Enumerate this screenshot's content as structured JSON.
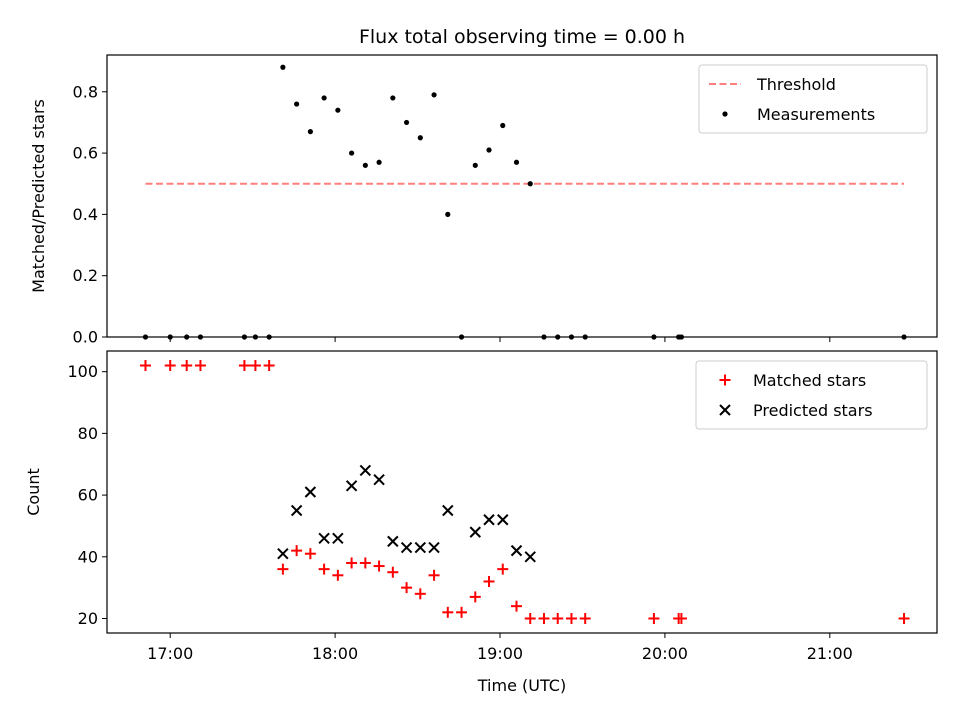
{
  "chart_data": [
    {
      "type": "scatter",
      "title": "Flux total observing time = 0.00 h",
      "xlabel": "",
      "ylabel": "Matched/Predicted stars",
      "ylim": [
        0,
        0.92
      ],
      "yticks": [
        "0.0",
        "0.2",
        "0.4",
        "0.6",
        "0.8"
      ],
      "ytick_values": [
        0,
        0.2,
        0.4,
        0.6,
        0.8
      ],
      "legend_position": "top-right",
      "legend": [
        "Threshold",
        "Measurements"
      ],
      "threshold": {
        "name": "Threshold",
        "value": 0.5,
        "x_start": "16:51",
        "x_end": "21:27",
        "color": "#ff7f7f"
      },
      "series": [
        {
          "name": "Measurements",
          "color": "#000000",
          "points": [
            [
              "16:51",
              0.0
            ],
            [
              "17:00",
              0.0
            ],
            [
              "17:06",
              0.0
            ],
            [
              "17:11",
              0.0
            ],
            [
              "17:27",
              0.0
            ],
            [
              "17:31",
              0.0
            ],
            [
              "17:36",
              0.0
            ],
            [
              "17:41",
              0.88
            ],
            [
              "17:46",
              0.76
            ],
            [
              "17:51",
              0.67
            ],
            [
              "17:56",
              0.78
            ],
            [
              "18:01",
              0.74
            ],
            [
              "18:06",
              0.6
            ],
            [
              "18:11",
              0.56
            ],
            [
              "18:16",
              0.57
            ],
            [
              "18:21",
              0.78
            ],
            [
              "18:26",
              0.7
            ],
            [
              "18:31",
              0.65
            ],
            [
              "18:36",
              0.79
            ],
            [
              "18:41",
              0.4
            ],
            [
              "18:46",
              0.0
            ],
            [
              "18:51",
              0.56
            ],
            [
              "18:56",
              0.61
            ],
            [
              "19:01",
              0.69
            ],
            [
              "19:06",
              0.57
            ],
            [
              "19:11",
              0.5
            ],
            [
              "19:16",
              0.0
            ],
            [
              "19:21",
              0.0
            ],
            [
              "19:26",
              0.0
            ],
            [
              "19:31",
              0.0
            ],
            [
              "19:56",
              0.0
            ],
            [
              "20:05",
              0.0
            ],
            [
              "20:06",
              0.0
            ],
            [
              "21:27",
              0.0
            ]
          ]
        }
      ]
    },
    {
      "type": "scatter",
      "title": "",
      "xlabel": "Time (UTC)",
      "ylabel": "Count",
      "ylim": [
        15.3,
        106.7
      ],
      "yticks": [
        "20",
        "40",
        "60",
        "80",
        "100"
      ],
      "ytick_values": [
        20,
        40,
        60,
        80,
        100
      ],
      "xlim": [
        "16:37",
        "21:39"
      ],
      "xticks": [
        "17:00",
        "18:00",
        "19:00",
        "20:00",
        "21:00"
      ],
      "legend_position": "top-right",
      "legend": [
        "Matched stars",
        "Predicted stars"
      ],
      "series": [
        {
          "name": "Matched stars",
          "marker": "plus",
          "color": "#ff0000",
          "points": [
            [
              "16:51",
              102
            ],
            [
              "17:00",
              102
            ],
            [
              "17:06",
              102
            ],
            [
              "17:11",
              102
            ],
            [
              "17:27",
              102
            ],
            [
              "17:31",
              102
            ],
            [
              "17:36",
              102
            ],
            [
              "17:41",
              36
            ],
            [
              "17:46",
              42
            ],
            [
              "17:51",
              41
            ],
            [
              "17:56",
              36
            ],
            [
              "18:01",
              34
            ],
            [
              "18:06",
              38
            ],
            [
              "18:11",
              38
            ],
            [
              "18:16",
              37
            ],
            [
              "18:21",
              35
            ],
            [
              "18:26",
              30
            ],
            [
              "18:31",
              28
            ],
            [
              "18:36",
              34
            ],
            [
              "18:41",
              22
            ],
            [
              "18:46",
              22
            ],
            [
              "18:51",
              27
            ],
            [
              "18:56",
              32
            ],
            [
              "19:01",
              36
            ],
            [
              "19:06",
              24
            ],
            [
              "19:11",
              20
            ],
            [
              "19:16",
              20
            ],
            [
              "19:21",
              20
            ],
            [
              "19:26",
              20
            ],
            [
              "19:31",
              20
            ],
            [
              "19:56",
              20
            ],
            [
              "20:05",
              20
            ],
            [
              "20:06",
              20
            ],
            [
              "21:27",
              20
            ]
          ]
        },
        {
          "name": "Predicted stars",
          "marker": "x",
          "color": "#000000",
          "points": [
            [
              "17:41",
              41
            ],
            [
              "17:46",
              55
            ],
            [
              "17:51",
              61
            ],
            [
              "17:56",
              46
            ],
            [
              "18:01",
              46
            ],
            [
              "18:06",
              63
            ],
            [
              "18:11",
              68
            ],
            [
              "18:16",
              65
            ],
            [
              "18:21",
              45
            ],
            [
              "18:26",
              43
            ],
            [
              "18:31",
              43
            ],
            [
              "18:36",
              43
            ],
            [
              "18:41",
              55
            ],
            [
              "18:51",
              48
            ],
            [
              "18:56",
              52
            ],
            [
              "19:01",
              52
            ],
            [
              "19:06",
              42
            ],
            [
              "19:11",
              40
            ]
          ]
        }
      ]
    }
  ]
}
